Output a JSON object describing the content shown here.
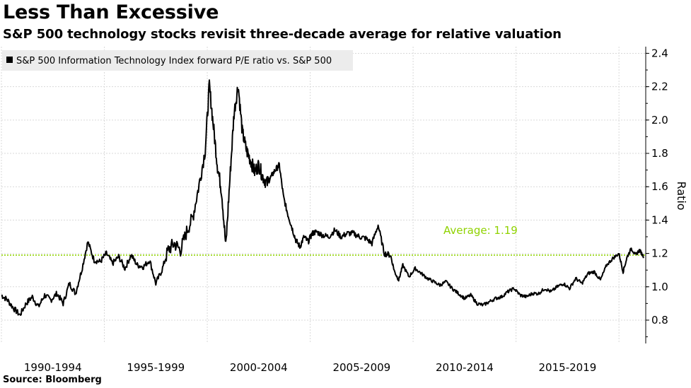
{
  "header": {
    "title": "Less Than Excessive",
    "subtitle": "S&P 500 technology stocks revisit three-decade average for relative valuation"
  },
  "footer": {
    "source": "Source: Bloomberg"
  },
  "colors": {
    "series": "#000000",
    "average": "#8fd200",
    "grid": "#d9d9d9",
    "legend_bg": "#ececec"
  },
  "chart_data": {
    "type": "line",
    "title": "Less Than Excessive",
    "subtitle": "S&P 500 technology stocks revisit three-decade average for relative valuation",
    "xlabel": "",
    "ylabel": "Ratio",
    "xlim": [
      1990.0,
      2021.3
    ],
    "ylim": [
      0.66,
      2.44
    ],
    "yticks": [
      0.8,
      1.0,
      1.2,
      1.4,
      1.6,
      1.8,
      2.0,
      2.2,
      2.4
    ],
    "ytick_labels": [
      "0.8",
      "1.0",
      "1.2",
      "1.4",
      "1.6",
      "1.8",
      "2.0",
      "2.2",
      "2.4"
    ],
    "xgrid": [
      1990.0,
      1995.0,
      2000.0,
      2005.0,
      2010.0,
      2015.0,
      2020.0
    ],
    "xtick_labels": [
      {
        "label": "1990-1994",
        "center": 1992.5
      },
      {
        "label": "1995-1999",
        "center": 1997.5
      },
      {
        "label": "2000-2004",
        "center": 2002.5
      },
      {
        "label": "2005-2009",
        "center": 2007.5
      },
      {
        "label": "2010-2014",
        "center": 2012.5
      },
      {
        "label": "2015-2019",
        "center": 2017.5
      }
    ],
    "grid": true,
    "legend": {
      "position": "top-left",
      "entries": [
        "S&P 500 Information Technology Index forward P/E ratio vs. S&P 500"
      ]
    },
    "annotations": [
      {
        "text": "Average: 1.19",
        "y": 1.19
      }
    ],
    "series": [
      {
        "name": "S&P 500 Information Technology Index forward P/E ratio vs. S&P 500",
        "x": [
          1990.0,
          1990.3,
          1990.6,
          1990.9,
          1991.2,
          1991.5,
          1991.8,
          1992.1,
          1992.4,
          1992.7,
          1993.0,
          1993.3,
          1993.6,
          1993.9,
          1994.2,
          1994.5,
          1994.8,
          1995.1,
          1995.4,
          1995.7,
          1996.0,
          1996.3,
          1996.6,
          1996.9,
          1997.2,
          1997.5,
          1997.8,
          1998.1,
          1998.4,
          1998.7,
          1999.0,
          1999.3,
          1999.6,
          1999.9,
          2000.1,
          2000.3,
          2000.5,
          2000.7,
          2000.9,
          2001.1,
          2001.3,
          2001.5,
          2001.7,
          2001.9,
          2002.1,
          2002.3,
          2002.5,
          2002.7,
          2002.9,
          2003.1,
          2003.3,
          2003.5,
          2003.7,
          2003.9,
          2004.1,
          2004.3,
          2004.5,
          2004.7,
          2004.9,
          2005.1,
          2005.3,
          2005.6,
          2005.9,
          2006.2,
          2006.5,
          2006.8,
          2007.1,
          2007.4,
          2007.7,
          2008.0,
          2008.3,
          2008.6,
          2008.9,
          2009.1,
          2009.3,
          2009.5,
          2009.8,
          2010.1,
          2010.4,
          2010.7,
          2011.0,
          2011.3,
          2011.6,
          2011.9,
          2012.2,
          2012.5,
          2012.8,
          2013.1,
          2013.4,
          2013.7,
          2014.0,
          2014.3,
          2014.6,
          2014.9,
          2015.2,
          2015.5,
          2015.8,
          2016.1,
          2016.4,
          2016.7,
          2017.0,
          2017.3,
          2017.6,
          2017.9,
          2018.2,
          2018.5,
          2018.8,
          2019.1,
          2019.4,
          2019.7,
          2020.0,
          2020.2,
          2020.4,
          2020.6,
          2020.8,
          2021.0,
          2021.2
        ],
        "y": [
          0.95,
          0.92,
          0.87,
          0.83,
          0.9,
          0.94,
          0.88,
          0.95,
          0.92,
          0.96,
          0.9,
          1.02,
          0.96,
          1.1,
          1.27,
          1.16,
          1.15,
          1.2,
          1.14,
          1.18,
          1.11,
          1.19,
          1.13,
          1.12,
          1.16,
          1.02,
          1.1,
          1.22,
          1.26,
          1.22,
          1.33,
          1.42,
          1.61,
          1.82,
          2.21,
          1.96,
          1.72,
          1.57,
          1.24,
          1.65,
          2.04,
          2.21,
          1.93,
          1.82,
          1.76,
          1.69,
          1.73,
          1.66,
          1.62,
          1.66,
          1.7,
          1.73,
          1.54,
          1.44,
          1.36,
          1.28,
          1.24,
          1.3,
          1.27,
          1.32,
          1.33,
          1.31,
          1.3,
          1.34,
          1.3,
          1.32,
          1.32,
          1.3,
          1.29,
          1.26,
          1.37,
          1.2,
          1.19,
          1.09,
          1.04,
          1.13,
          1.06,
          1.11,
          1.08,
          1.05,
          1.03,
          1.01,
          1.03,
          0.99,
          0.96,
          0.93,
          0.95,
          0.9,
          0.89,
          0.91,
          0.93,
          0.94,
          0.97,
          0.99,
          0.95,
          0.94,
          0.96,
          0.96,
          0.99,
          0.97,
          1.0,
          1.02,
          0.99,
          1.05,
          1.02,
          1.08,
          1.09,
          1.04,
          1.13,
          1.17,
          1.2,
          1.09,
          1.18,
          1.23,
          1.19,
          1.22,
          1.18
        ]
      }
    ]
  }
}
